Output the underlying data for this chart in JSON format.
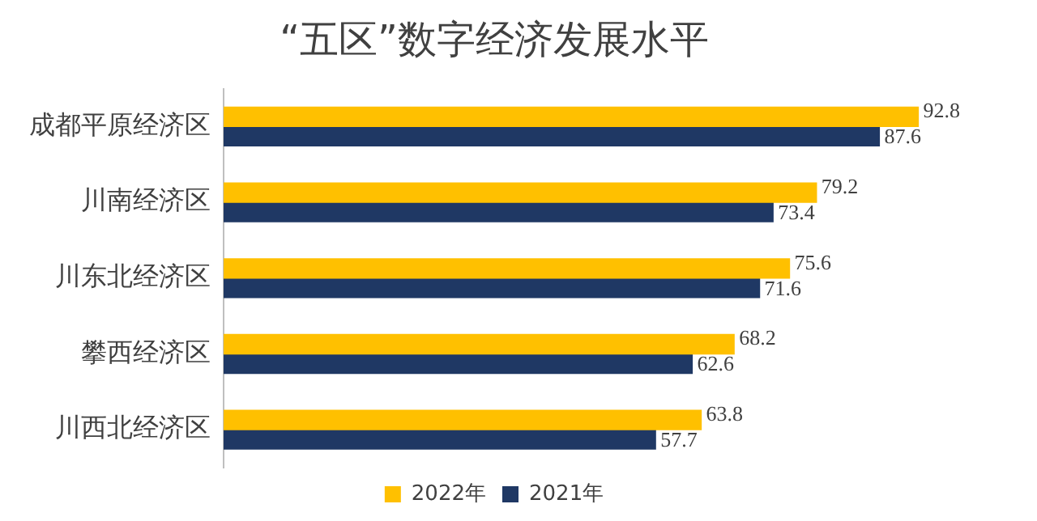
{
  "chart_data": {
    "type": "bar",
    "orientation": "horizontal",
    "title": "“五区”数字经济发展水平",
    "categories": [
      "成都平原经济区",
      "川南经济区",
      "川东北经济区",
      "攀西经济区",
      "川西北经济区"
    ],
    "series": [
      {
        "name": "2022年",
        "color": "#ffc000",
        "values": [
          92.8,
          79.2,
          75.6,
          68.2,
          63.8
        ]
      },
      {
        "name": "2021年",
        "color": "#1f3864",
        "values": [
          87.6,
          73.4,
          71.6,
          62.6,
          57.7
        ]
      }
    ],
    "tick_labels": "y",
    "data_labels": true,
    "legend": "bottom",
    "grid": false
  }
}
